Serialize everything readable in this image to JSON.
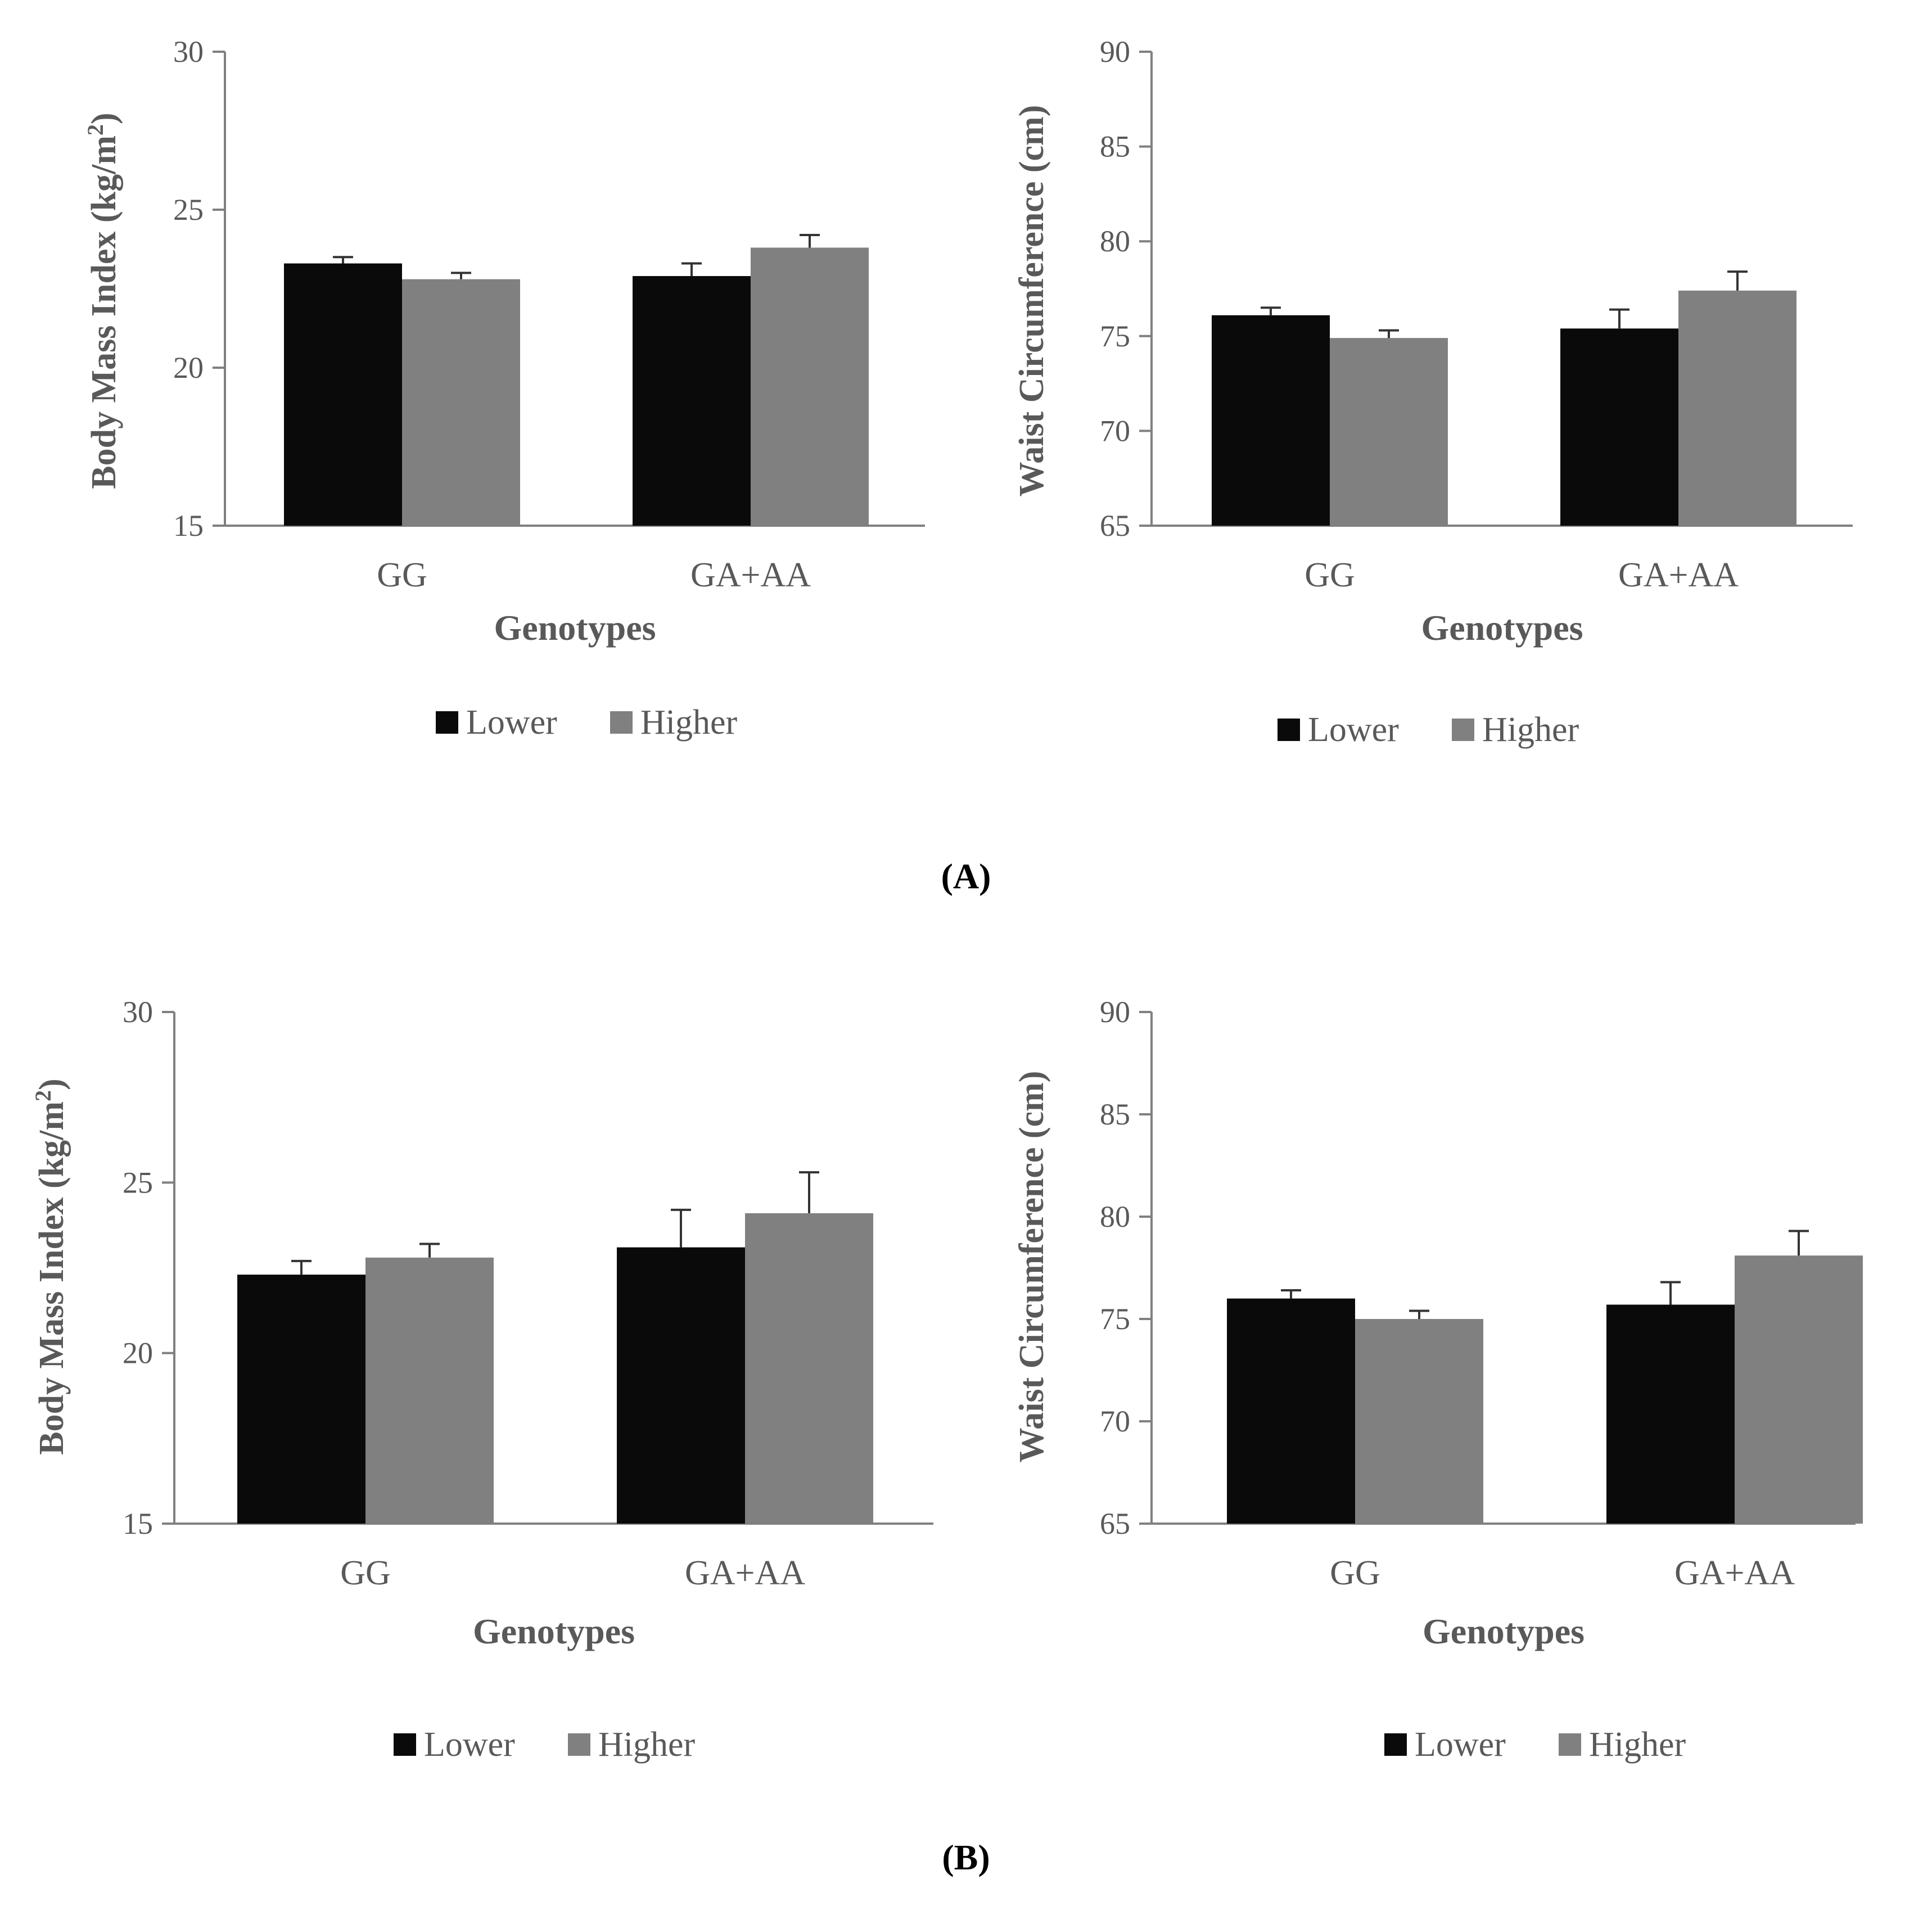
{
  "colors": {
    "lower": "#0a0a0a",
    "higher": "#808080",
    "axis": "#808080",
    "text": "#595959"
  },
  "panels": [
    {
      "label": "(A)"
    },
    {
      "label": "(B)"
    }
  ],
  "chart_data": [
    {
      "type": "bar",
      "panel": "A",
      "categories": [
        "GG",
        "GA+AA"
      ],
      "series": [
        {
          "name": "Lower",
          "values": [
            23.3,
            22.9
          ],
          "errors": [
            0.2,
            0.4
          ]
        },
        {
          "name": "Higher",
          "values": [
            22.8,
            23.8
          ],
          "errors": [
            0.2,
            0.4
          ]
        }
      ],
      "ylabel_main": "Body Mass Index (kg/m",
      "ylabel_sup": "2",
      "ylabel_end": ")",
      "xlabel": "Genotypes",
      "ylim": [
        15,
        30
      ],
      "yticks": [
        "15",
        "20",
        "25",
        "30"
      ],
      "legend": [
        "Lower",
        "Higher"
      ],
      "legend_position": "bottom",
      "grid": false
    },
    {
      "type": "bar",
      "panel": "A",
      "categories": [
        "GG",
        "GA+AA"
      ],
      "series": [
        {
          "name": "Lower",
          "values": [
            76.1,
            75.4
          ],
          "errors": [
            0.4,
            1.0
          ]
        },
        {
          "name": "Higher",
          "values": [
            74.9,
            77.4
          ],
          "errors": [
            0.4,
            1.0
          ]
        }
      ],
      "ylabel_main": "Waist Circumference (cm)",
      "xlabel": "Genotypes",
      "ylim": [
        65,
        90
      ],
      "yticks": [
        "65",
        "70",
        "75",
        "80",
        "85",
        "90"
      ],
      "legend": [
        "Lower",
        "Higher"
      ],
      "legend_position": "bottom",
      "grid": false
    },
    {
      "type": "bar",
      "panel": "B",
      "categories": [
        "GG",
        "GA+AA"
      ],
      "series": [
        {
          "name": "Lower",
          "values": [
            22.3,
            23.1
          ],
          "errors": [
            0.4,
            1.1
          ]
        },
        {
          "name": "Higher",
          "values": [
            22.8,
            24.1
          ],
          "errors": [
            0.4,
            1.2
          ]
        }
      ],
      "ylabel_main": "Body Mass Index (kg/m",
      "ylabel_sup": "2",
      "ylabel_end": ")",
      "xlabel": "Genotypes",
      "ylim": [
        15,
        30
      ],
      "yticks": [
        "15",
        "20",
        "25",
        "30"
      ],
      "legend": [
        "Lower",
        "Higher"
      ],
      "legend_position": "bottom",
      "grid": false
    },
    {
      "type": "bar",
      "panel": "B",
      "categories": [
        "GG",
        "GA+AA"
      ],
      "series": [
        {
          "name": "Lower",
          "values": [
            76.0,
            75.7
          ],
          "errors": [
            0.4,
            1.1
          ]
        },
        {
          "name": "Higher",
          "values": [
            75.0,
            78.1
          ],
          "errors": [
            0.4,
            1.2
          ]
        }
      ],
      "ylabel_main": "Waist Circumference (cm)",
      "xlabel": "Genotypes",
      "ylim": [
        65,
        90
      ],
      "yticks": [
        "65",
        "70",
        "75",
        "80",
        "85",
        "90"
      ],
      "legend": [
        "Lower",
        "Higher"
      ],
      "legend_position": "bottom",
      "grid": false
    }
  ]
}
